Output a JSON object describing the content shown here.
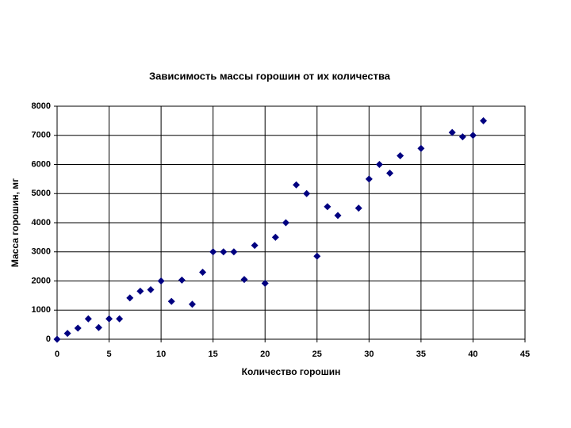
{
  "chart_data": {
    "type": "scatter",
    "title": "Зависимость массы горошин от их количества",
    "x_label": "Количество горошин",
    "y_label": "Масса горошин, мг",
    "x": [
      0,
      1,
      2,
      3,
      4,
      5,
      6,
      7,
      8,
      9,
      10,
      11,
      12,
      13,
      14,
      15,
      16,
      17,
      18,
      19,
      20,
      21,
      22,
      23,
      24,
      25,
      26,
      27,
      29,
      30,
      31,
      32,
      33,
      35,
      38,
      39,
      40,
      41
    ],
    "series": [
      {
        "color": "#000080",
        "values": [
          0,
          200,
          380,
          700,
          400,
          700,
          700,
          1420,
          1650,
          1700,
          2000,
          1300,
          2030,
          1200,
          2300,
          3000,
          3000,
          3000,
          2050,
          3220,
          1920,
          3500,
          4000,
          5300,
          5000,
          2850,
          4550,
          4250,
          4500,
          5500,
          6000,
          5700,
          6300,
          6550,
          7100,
          6950,
          7000,
          7500
        ]
      }
    ],
    "xlim": [
      0,
      45
    ],
    "xticks": [
      0,
      5,
      10,
      15,
      20,
      25,
      30,
      35,
      40,
      45
    ],
    "ylim": [
      0,
      8000
    ],
    "yticks": [
      0,
      1000,
      2000,
      3000,
      4000,
      5000,
      6000,
      7000,
      8000
    ],
    "grid": true
  }
}
